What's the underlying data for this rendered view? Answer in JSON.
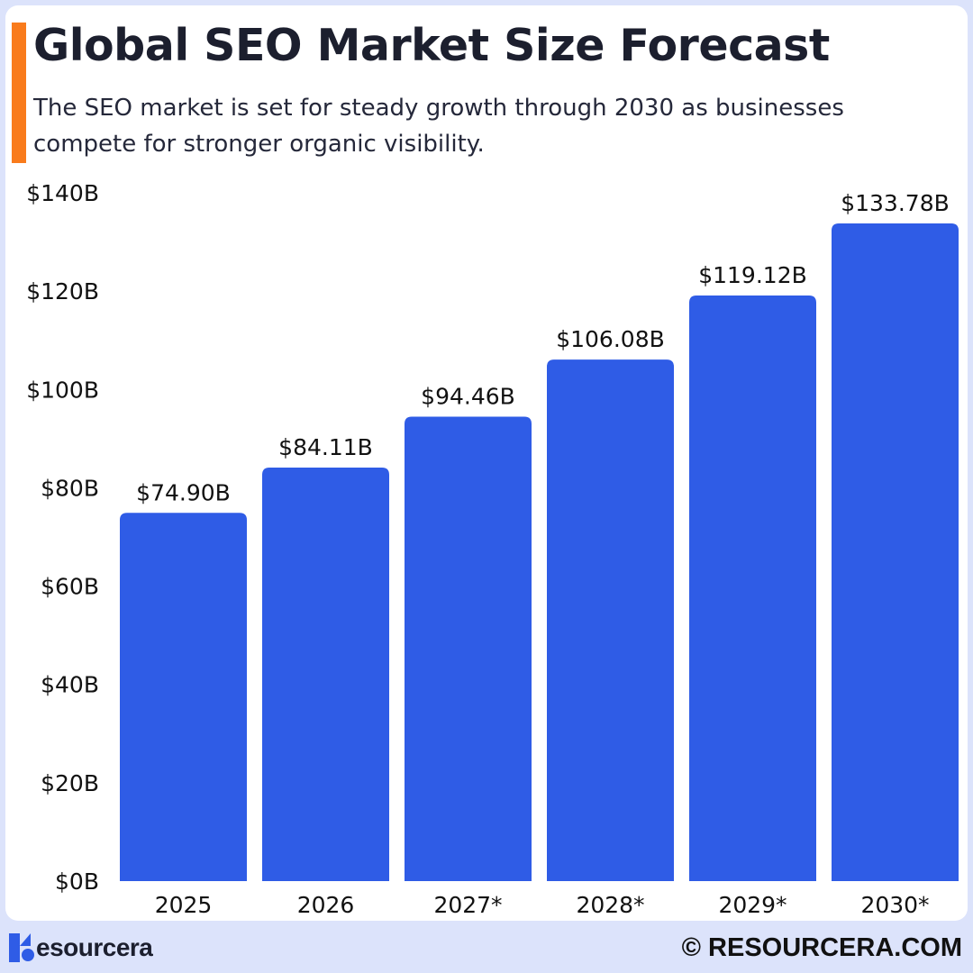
{
  "header": {
    "title": "Global SEO Market Size Forecast",
    "subtitle": "The SEO market is set for steady growth through 2030 as businesses compete for stronger organic visibility."
  },
  "footer": {
    "logo_text": "esourcera",
    "copyright": "© RESOURCERA.COM"
  },
  "colors": {
    "bar": "#2f5ce6",
    "accent": "#f97b1c",
    "background": "#dce3fb"
  },
  "chart_data": {
    "type": "bar",
    "title": "Global SEO Market Size Forecast",
    "categories": [
      "2025",
      "2026",
      "2027*",
      "2028*",
      "2029*",
      "2030*"
    ],
    "values": [
      74.9,
      84.11,
      94.46,
      106.08,
      119.12,
      133.78
    ],
    "data_labels": [
      "$74.90B",
      "$84.11B",
      "$94.46B",
      "$106.08B",
      "$119.12B",
      "$133.78B"
    ],
    "unit": "USD billions",
    "ylim": [
      0,
      140
    ],
    "yticks": [
      0,
      20,
      40,
      60,
      80,
      100,
      120,
      140
    ],
    "ytick_labels": [
      "$0B",
      "$20B",
      "$40B",
      "$60B",
      "$80B",
      "$100B",
      "$120B",
      "$140B"
    ],
    "grid": false,
    "xlabel": "",
    "ylabel": ""
  }
}
